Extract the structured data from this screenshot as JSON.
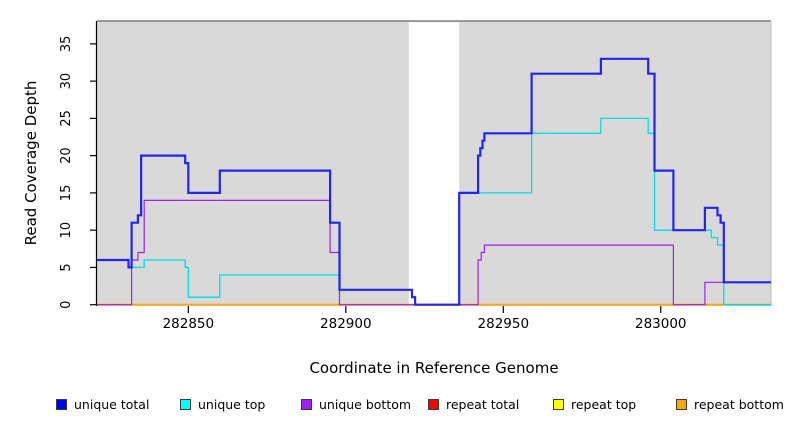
{
  "figure": {
    "x_axis_label": "Coordinate in Reference Genome",
    "y_axis_label": "Read Coverage Depth"
  },
  "chart_data": {
    "type": "line",
    "step": true,
    "title": "",
    "xlabel": "Coordinate in Reference Genome",
    "ylabel": "Read Coverage Depth",
    "x_domain": [
      282821,
      283035
    ],
    "y_domain": [
      0,
      38
    ],
    "x_ticks": [
      282850,
      282900,
      282950,
      283000
    ],
    "y_ticks": [
      0,
      5,
      10,
      15,
      20,
      25,
      30,
      35
    ],
    "grid": false,
    "plot_bg_color": "#d9d9d9",
    "plot_top_border_color": "#7f7f7f",
    "masked_region": {
      "start": 282920,
      "end": 282936
    },
    "legend_position": "bottom",
    "series": [
      {
        "name": "repeat total",
        "color": "#ee1111",
        "width": 1.2,
        "points": [
          [
            282821,
            0
          ]
        ]
      },
      {
        "name": "repeat top",
        "color": "#f2f200",
        "width": 1.2,
        "points": [
          [
            282821,
            0
          ]
        ]
      },
      {
        "name": "repeat bottom",
        "color": "#ffa500",
        "width": 1.8,
        "points": [
          [
            282821,
            0
          ]
        ]
      },
      {
        "name": "unique bottom",
        "color": "#a020f0",
        "width": 1.2,
        "points": [
          [
            282821,
            0
          ],
          [
            282832,
            6
          ],
          [
            282834,
            7
          ],
          [
            282836,
            14
          ],
          [
            282895,
            7
          ],
          [
            282898,
            0
          ],
          [
            282942,
            6
          ],
          [
            282943,
            7
          ],
          [
            282944,
            8
          ],
          [
            283004,
            0
          ],
          [
            283014,
            3
          ]
        ]
      },
      {
        "name": "unique top",
        "color": "#00dde8",
        "width": 1.3,
        "points": [
          [
            282821,
            6
          ],
          [
            282831,
            5
          ],
          [
            282836,
            6
          ],
          [
            282849,
            5
          ],
          [
            282850,
            1
          ],
          [
            282860,
            4
          ],
          [
            282898,
            2
          ],
          [
            282921,
            1
          ],
          [
            282922,
            0
          ],
          [
            282936,
            15
          ],
          [
            282959,
            23
          ],
          [
            282981,
            25
          ],
          [
            282996,
            23
          ],
          [
            282998,
            10
          ],
          [
            283016,
            9
          ],
          [
            283018,
            8
          ],
          [
            283020,
            0
          ]
        ]
      },
      {
        "name": "unique total",
        "color": "#2424f0",
        "width": 2.2,
        "points": [
          [
            282821,
            6
          ],
          [
            282831,
            5
          ],
          [
            282832,
            11
          ],
          [
            282834,
            12
          ],
          [
            282835,
            20
          ],
          [
            282849,
            19
          ],
          [
            282850,
            15
          ],
          [
            282860,
            18
          ],
          [
            282895,
            11
          ],
          [
            282898,
            2
          ],
          [
            282921,
            1
          ],
          [
            282922,
            0
          ],
          [
            282936,
            15
          ],
          [
            282942,
            20
          ],
          [
            282942.7,
            21
          ],
          [
            282943.4,
            22
          ],
          [
            282944,
            23
          ],
          [
            282959,
            31
          ],
          [
            282981,
            33
          ],
          [
            282996,
            31
          ],
          [
            282998,
            18
          ],
          [
            283004,
            10
          ],
          [
            283014,
            13
          ],
          [
            283018,
            12
          ],
          [
            283019,
            11
          ],
          [
            283020,
            3
          ]
        ]
      }
    ]
  },
  "legend": {
    "items": [
      {
        "label": "unique total",
        "color": "#0000ff"
      },
      {
        "label": "unique top",
        "color": "#00ffff"
      },
      {
        "label": "unique bottom",
        "color": "#a020f0"
      },
      {
        "label": "repeat total",
        "color": "#ff0000"
      },
      {
        "label": "repeat top",
        "color": "#ffff00"
      },
      {
        "label": "repeat bottom",
        "color": "#ffa500"
      }
    ]
  }
}
